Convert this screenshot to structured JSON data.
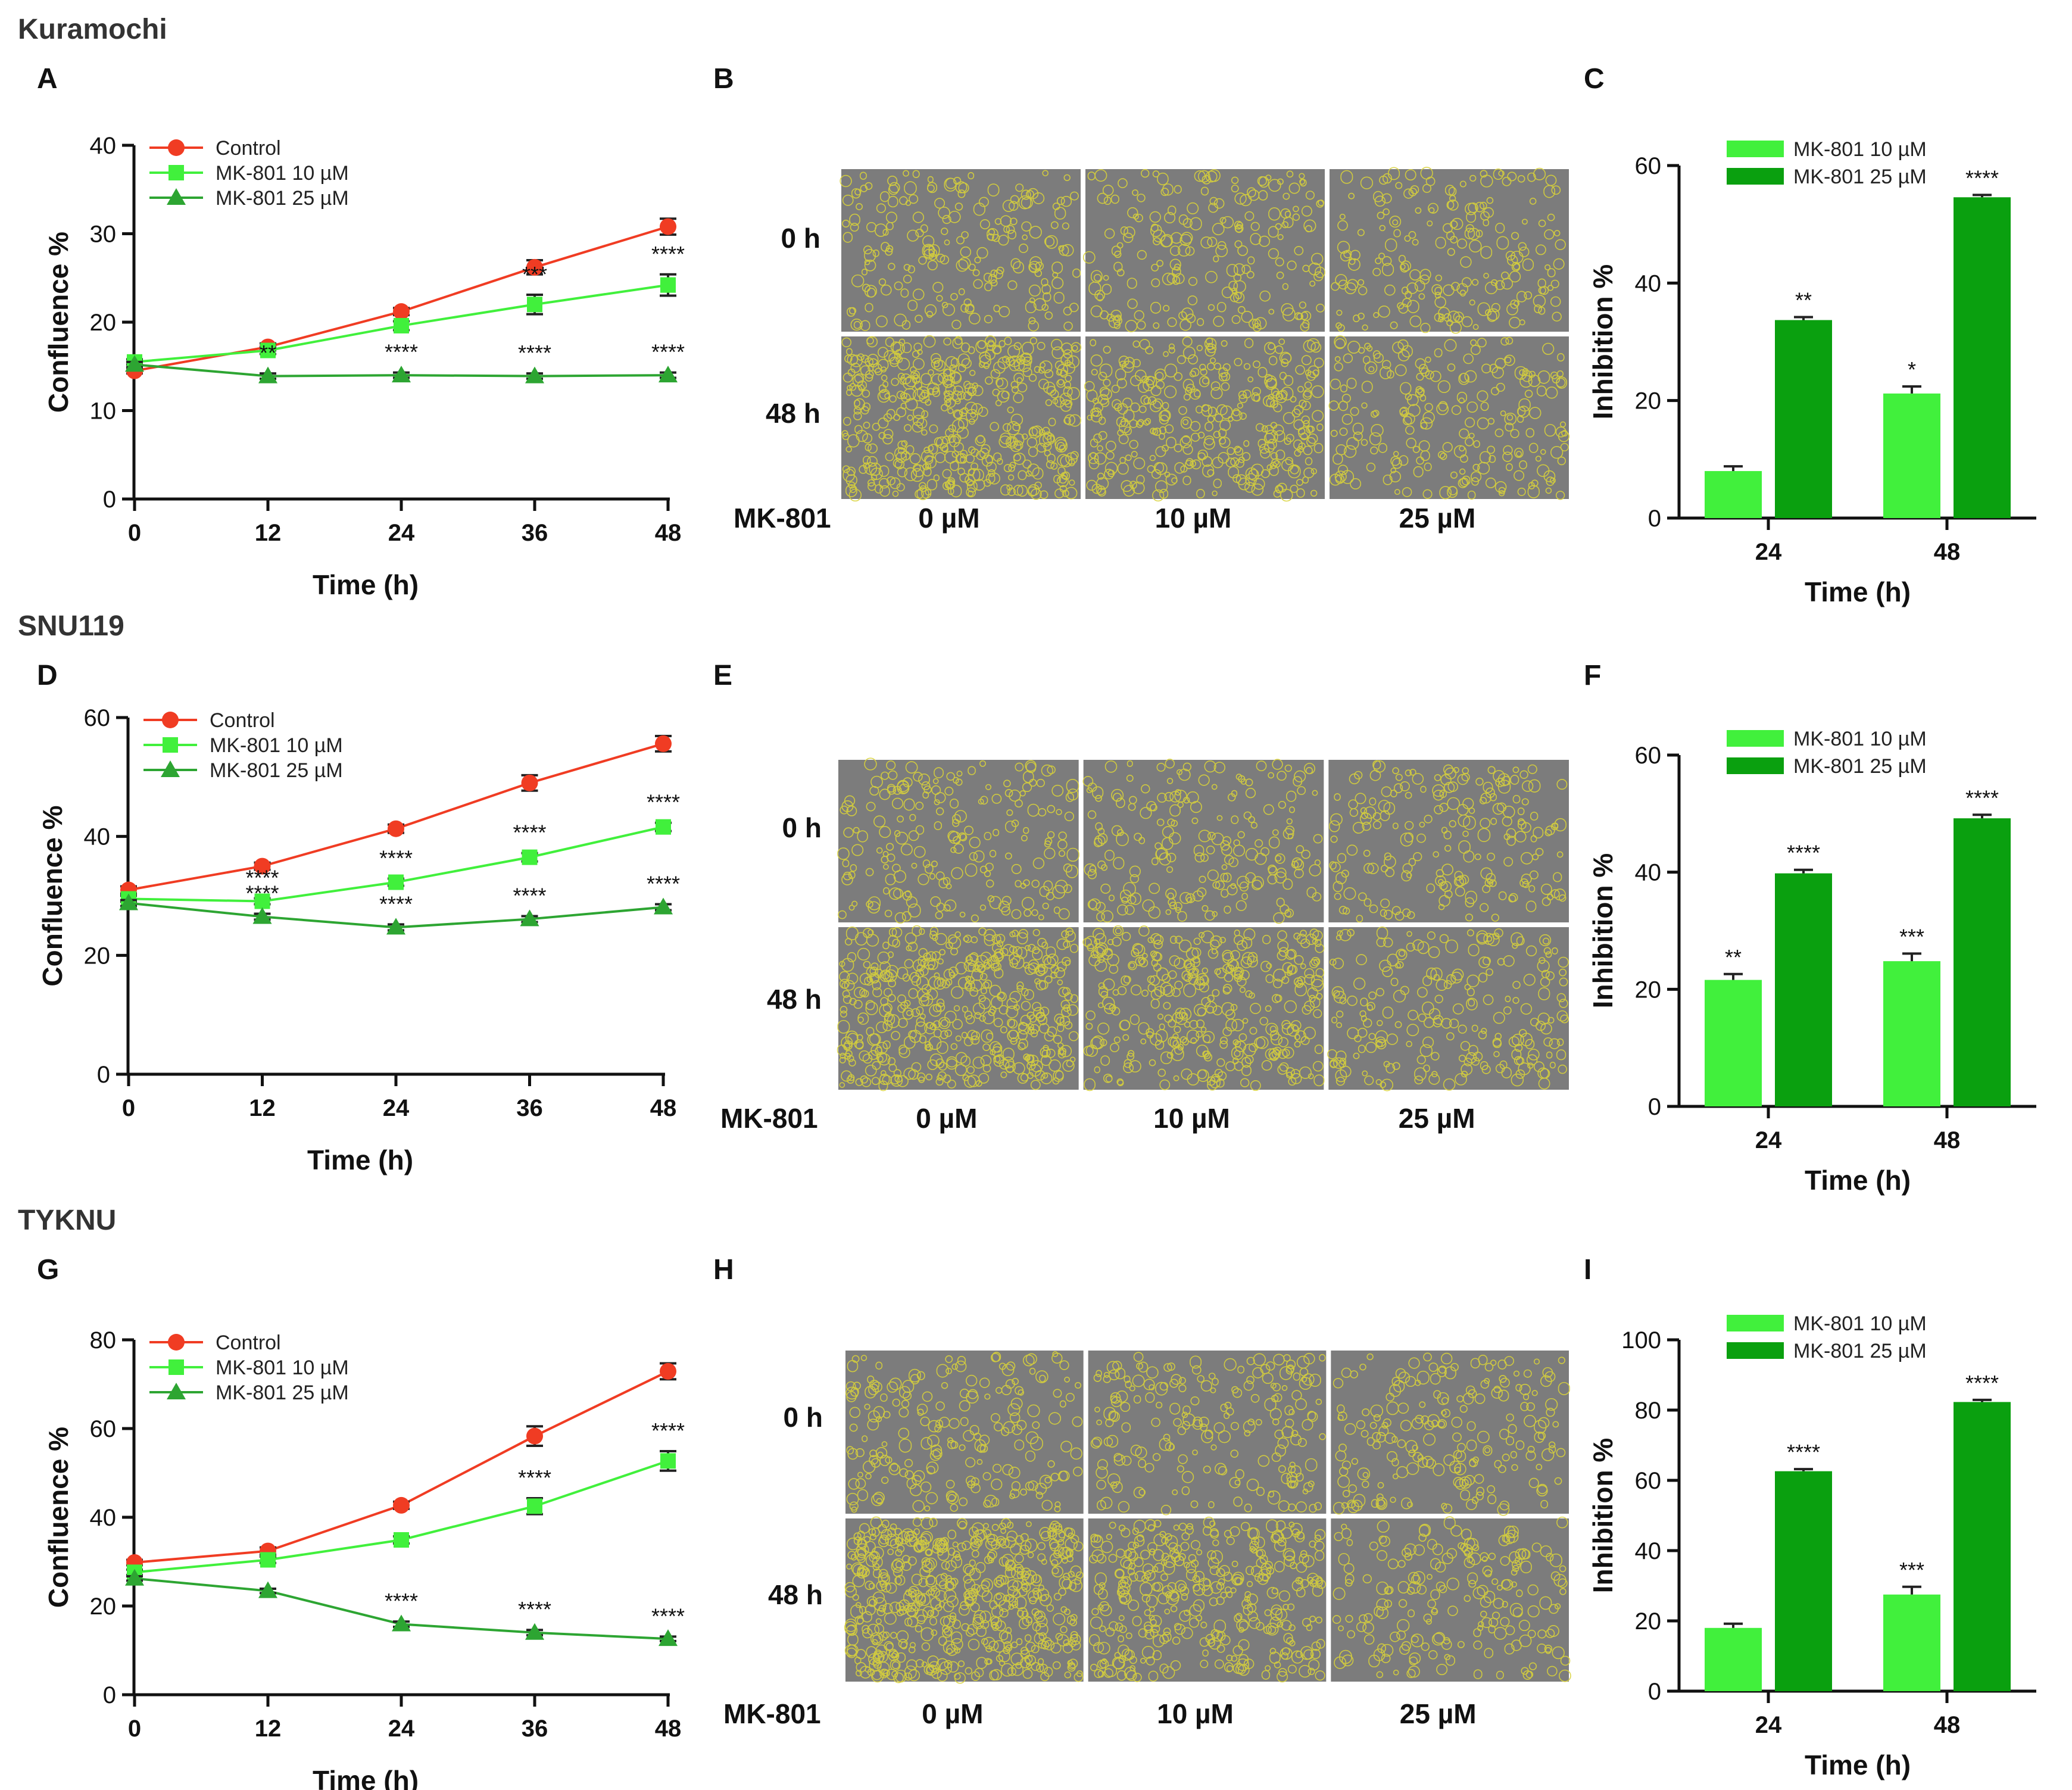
{
  "sections": [
    {
      "title": "Kuramochi",
      "panels": [
        "A",
        "B",
        "C"
      ]
    },
    {
      "title": "SNU119",
      "panels": [
        "D",
        "E",
        "F"
      ]
    },
    {
      "title": "TYKNU",
      "panels": [
        "G",
        "H",
        "I"
      ]
    }
  ],
  "colors": {
    "control": "#f03c23",
    "mk10": "#41f03c",
    "mk25": "#2da532",
    "bar10": "#41f03c",
    "bar25": "#0aa00f",
    "image_bg": "#7c7c7c",
    "cell_outline": "#d8d23a",
    "axis": "#111111"
  },
  "image_panels": {
    "row_labels": [
      "0 h",
      "48 h"
    ],
    "treatment_label": "MK-801",
    "columns": [
      "0 µM",
      "10 µM",
      "25 µM"
    ]
  },
  "chart_data": [
    {
      "panel": "A",
      "type": "line",
      "xlabel": "Time (h)",
      "ylabel": "Confluence %",
      "x": [
        0,
        12,
        24,
        36,
        48
      ],
      "xlim": [
        0,
        48
      ],
      "ylim": [
        0,
        40
      ],
      "yticks": [
        0,
        10,
        20,
        30,
        40
      ],
      "legend": "top-left",
      "series": [
        {
          "name": "Control",
          "marker": "circle",
          "color": "#f03c23",
          "values": [
            14.5,
            17.2,
            21.2,
            26.2,
            30.8
          ],
          "errors": [
            0.3,
            0.4,
            0.4,
            0.8,
            0.9
          ],
          "significance": [
            "",
            "",
            "",
            "",
            ""
          ]
        },
        {
          "name": "MK-801 10 µM",
          "marker": "square",
          "color": "#41f03c",
          "values": [
            15.5,
            16.8,
            19.6,
            22.0,
            24.2
          ],
          "errors": [
            0.3,
            0.4,
            0.5,
            1.1,
            1.2
          ],
          "significance": [
            "",
            "",
            "",
            "***",
            "****"
          ]
        },
        {
          "name": "MK-801 25 µM",
          "marker": "triangle",
          "color": "#2da532",
          "values": [
            15.2,
            13.9,
            14.0,
            13.9,
            14.0
          ],
          "errors": [
            0.3,
            0.3,
            0.3,
            0.3,
            0.3
          ],
          "significance": [
            "",
            "**",
            "****",
            "****",
            "****"
          ]
        }
      ]
    },
    {
      "panel": "C",
      "type": "bar",
      "xlabel": "Time (h)",
      "ylabel": "Inhibition %",
      "categories": [
        "24",
        "48"
      ],
      "ylim": [
        0,
        60
      ],
      "yticks": [
        0,
        20,
        40,
        60
      ],
      "legend": "top-left",
      "series": [
        {
          "name": "MK-801 10 µM",
          "color": "#41f03c",
          "values": [
            8.0,
            21.2
          ],
          "errors": [
            0.8,
            1.2
          ],
          "significance": [
            "",
            "*"
          ]
        },
        {
          "name": "MK-801 25 µM",
          "color": "#0aa00f",
          "values": [
            33.7,
            54.6
          ],
          "errors": [
            0.5,
            0.4
          ],
          "significance": [
            "**",
            "****"
          ]
        }
      ]
    },
    {
      "panel": "D",
      "type": "line",
      "xlabel": "Time (h)",
      "ylabel": "Confluence %",
      "x": [
        0,
        12,
        24,
        36,
        48
      ],
      "xlim": [
        0,
        48
      ],
      "ylim": [
        0,
        60
      ],
      "yticks": [
        0,
        20,
        40,
        60
      ],
      "legend": "top-left",
      "series": [
        {
          "name": "Control",
          "marker": "circle",
          "color": "#f03c23",
          "values": [
            31.0,
            35.0,
            41.3,
            49.0,
            55.6
          ],
          "errors": [
            0.6,
            0.6,
            0.7,
            1.3,
            1.3
          ],
          "significance": [
            "",
            "",
            "",
            "",
            ""
          ]
        },
        {
          "name": "MK-801 10 µM",
          "marker": "square",
          "color": "#41f03c",
          "values": [
            29.5,
            29.1,
            32.3,
            36.5,
            41.6
          ],
          "errors": [
            0.5,
            0.5,
            0.6,
            0.7,
            0.7
          ],
          "significance": [
            "",
            "****",
            "****",
            "****",
            "****"
          ]
        },
        {
          "name": "MK-801 25 µM",
          "marker": "triangle",
          "color": "#2da532",
          "values": [
            28.8,
            26.5,
            24.7,
            26.1,
            28.1
          ],
          "errors": [
            0.5,
            0.5,
            0.5,
            0.5,
            0.5
          ],
          "significance": [
            "",
            "****",
            "****",
            "****",
            "****"
          ]
        }
      ]
    },
    {
      "panel": "F",
      "type": "bar",
      "xlabel": "Time (h)",
      "ylabel": "Inhibition %",
      "categories": [
        "24",
        "48"
      ],
      "ylim": [
        0,
        60
      ],
      "yticks": [
        0,
        20,
        40,
        60
      ],
      "legend": "top-left",
      "series": [
        {
          "name": "MK-801 10 µM",
          "color": "#41f03c",
          "values": [
            21.6,
            24.8
          ],
          "errors": [
            1.0,
            1.3
          ],
          "significance": [
            "**",
            "***"
          ]
        },
        {
          "name": "MK-801 25 µM",
          "color": "#0aa00f",
          "values": [
            39.8,
            49.2
          ],
          "errors": [
            0.6,
            0.6
          ],
          "significance": [
            "****",
            "****"
          ]
        }
      ]
    },
    {
      "panel": "G",
      "type": "line",
      "xlabel": "Time (h)",
      "ylabel": "Confluence %",
      "x": [
        0,
        12,
        24,
        36,
        48
      ],
      "xlim": [
        0,
        48
      ],
      "ylim": [
        0,
        80
      ],
      "yticks": [
        0,
        20,
        40,
        60,
        80
      ],
      "legend": "top-left",
      "series": [
        {
          "name": "Control",
          "marker": "circle",
          "color": "#f03c23",
          "values": [
            29.8,
            32.4,
            42.7,
            58.3,
            72.9
          ],
          "errors": [
            0.6,
            0.8,
            0.8,
            2.2,
            1.8
          ],
          "significance": [
            "",
            "",
            "",
            "",
            ""
          ]
        },
        {
          "name": "MK-801 10 µM",
          "marker": "square",
          "color": "#41f03c",
          "values": [
            27.6,
            30.4,
            34.9,
            42.5,
            52.7
          ],
          "errors": [
            0.6,
            0.7,
            0.8,
            1.8,
            2.2
          ],
          "significance": [
            "",
            "",
            "",
            "****",
            "****"
          ]
        },
        {
          "name": "MK-801 25 µM",
          "marker": "triangle",
          "color": "#2da532",
          "values": [
            26.2,
            23.4,
            15.9,
            14.0,
            12.6
          ],
          "errors": [
            0.5,
            0.5,
            0.6,
            0.6,
            0.5
          ],
          "significance": [
            "",
            "",
            "****",
            "****",
            "****"
          ]
        }
      ]
    },
    {
      "panel": "I",
      "type": "bar",
      "xlabel": "Time (h)",
      "ylabel": "Inhibition %",
      "categories": [
        "24",
        "48"
      ],
      "ylim": [
        0,
        100
      ],
      "yticks": [
        0,
        20,
        40,
        60,
        80,
        100
      ],
      "legend": "top-left",
      "series": [
        {
          "name": "MK-801 10 µM",
          "color": "#41f03c",
          "values": [
            18.0,
            27.5
          ],
          "errors": [
            1.2,
            2.2
          ],
          "significance": [
            "",
            "***"
          ]
        },
        {
          "name": "MK-801 25 µM",
          "color": "#0aa00f",
          "values": [
            62.6,
            82.3
          ],
          "errors": [
            0.6,
            0.6
          ],
          "significance": [
            "****",
            "****"
          ]
        }
      ]
    }
  ]
}
